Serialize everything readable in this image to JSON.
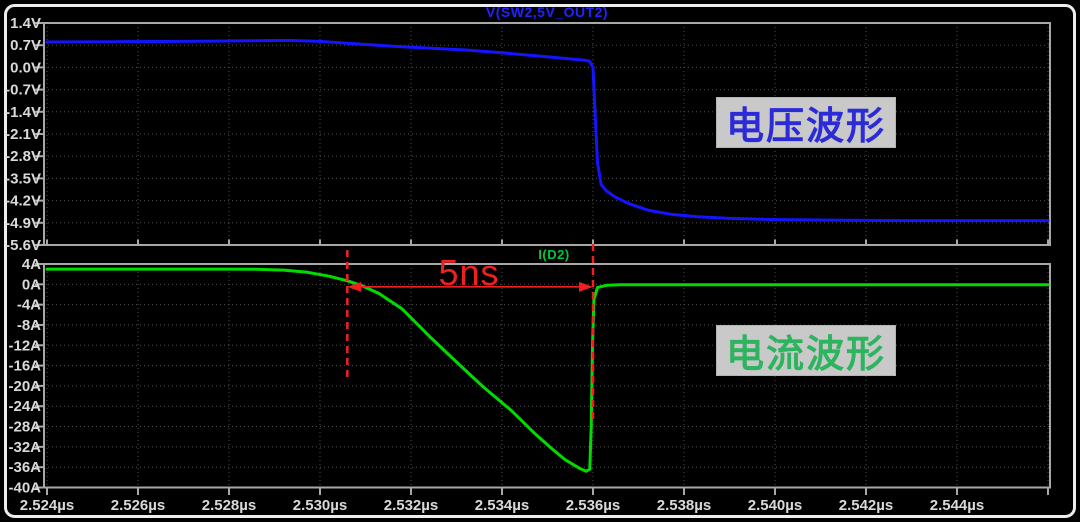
{
  "window": {
    "bg_color": "#000000",
    "frame_color": "#ededed",
    "panel_border_color": "#a8a8a8",
    "grid_color": "#4f4f4f",
    "tick_label_color": "#d9d9d9"
  },
  "panels": {
    "voltage": {
      "title": "V(SW2,5V_OUT2)",
      "title_color": "#2222ff",
      "overlay_label": "电压波形",
      "overlay_text_color": "#2b2bd8",
      "overlay_bg": "#c9c9c9"
    },
    "current": {
      "title": "I(D2)",
      "title_color": "#00c83c",
      "overlay_label": "电流波形",
      "overlay_text_color": "#2eb35f",
      "overlay_bg": "#c9c9c9"
    }
  },
  "x_axis": {
    "tick_labels": [
      "2.524µs",
      "2.526µs",
      "2.528µs",
      "2.530µs",
      "2.532µs",
      "2.534µs",
      "2.536µs",
      "2.538µs",
      "2.540µs",
      "2.542µs",
      "2.544µs"
    ],
    "tick_values": [
      2.524,
      2.526,
      2.528,
      2.53,
      2.532,
      2.534,
      2.536,
      2.538,
      2.54,
      2.542,
      2.544
    ]
  },
  "annotation": {
    "label": "5ns",
    "color": "#ee2020",
    "t_start": 2.5306,
    "t_end": 2.536,
    "arrow_level_a": -0.5
  },
  "chart_data": [
    {
      "type": "line",
      "title": "V(SW2,5V_OUT2)",
      "color": "#1414ff",
      "xlabel": "time",
      "ylabel": "voltage",
      "xlim": [
        2.524,
        2.546
      ],
      "ylim": [
        -5.6,
        1.4
      ],
      "grid": true,
      "legend_position": "top-center",
      "ytick_labels": [
        "1.4V",
        "0.7V",
        "0.0V",
        "-0.7V",
        "-1.4V",
        "-2.1V",
        "-2.8V",
        "-3.5V",
        "-4.2V",
        "-4.9V",
        "-5.6V"
      ],
      "series": [
        {
          "name": "V(SW2,5V_OUT2)",
          "x": [
            2.524,
            2.5255,
            2.527,
            2.5285,
            2.5293,
            2.53,
            2.5308,
            2.5316,
            2.5324,
            2.5332,
            2.534,
            2.5348,
            2.5354,
            2.5358,
            2.53592,
            2.536,
            2.53605,
            2.5361,
            2.53618,
            2.5363,
            2.5365,
            2.5368,
            2.5372,
            2.5377,
            2.5383,
            2.539,
            2.54,
            2.5415,
            2.543,
            2.546
          ],
          "y": [
            0.8,
            0.81,
            0.82,
            0.84,
            0.85,
            0.82,
            0.74,
            0.67,
            0.61,
            0.55,
            0.46,
            0.36,
            0.28,
            0.23,
            0.2,
            0.0,
            -1.6,
            -3.0,
            -3.7,
            -3.9,
            -4.1,
            -4.3,
            -4.5,
            -4.63,
            -4.71,
            -4.76,
            -4.8,
            -4.82,
            -4.83,
            -4.83
          ]
        }
      ]
    },
    {
      "type": "line",
      "title": "I(D2)",
      "color": "#00dc00",
      "xlabel": "time",
      "ylabel": "current",
      "xlim": [
        2.524,
        2.546
      ],
      "ylim": [
        -40,
        4
      ],
      "grid": true,
      "legend_position": "top-center",
      "ytick_labels": [
        "4A",
        "0A",
        "-4A",
        "-8A",
        "-12A",
        "-16A",
        "-20A",
        "-24A",
        "-28A",
        "-32A",
        "-36A",
        "-40A"
      ],
      "series": [
        {
          "name": "I(D2)",
          "x": [
            2.524,
            2.526,
            2.528,
            2.5286,
            2.5292,
            2.5297,
            2.5302,
            2.5306,
            2.5309,
            2.5313,
            2.5318,
            2.5324,
            2.533,
            2.5336,
            2.5342,
            2.5347,
            2.5351,
            2.5354,
            2.5357,
            2.53585,
            2.53593,
            2.53596,
            2.53599,
            2.53602,
            2.5361,
            2.5363,
            2.5366,
            2.537,
            2.54,
            2.546
          ],
          "y": [
            3.0,
            3.0,
            3.0,
            2.95,
            2.8,
            2.4,
            1.6,
            0.7,
            -0.2,
            -1.8,
            -4.8,
            -10.2,
            -15.3,
            -20.3,
            -24.8,
            -29.2,
            -32.4,
            -34.6,
            -36.2,
            -36.8,
            -36.4,
            -28.0,
            -12.0,
            -3.0,
            -0.6,
            -0.2,
            -0.1,
            -0.1,
            -0.1,
            -0.1
          ]
        }
      ]
    }
  ]
}
